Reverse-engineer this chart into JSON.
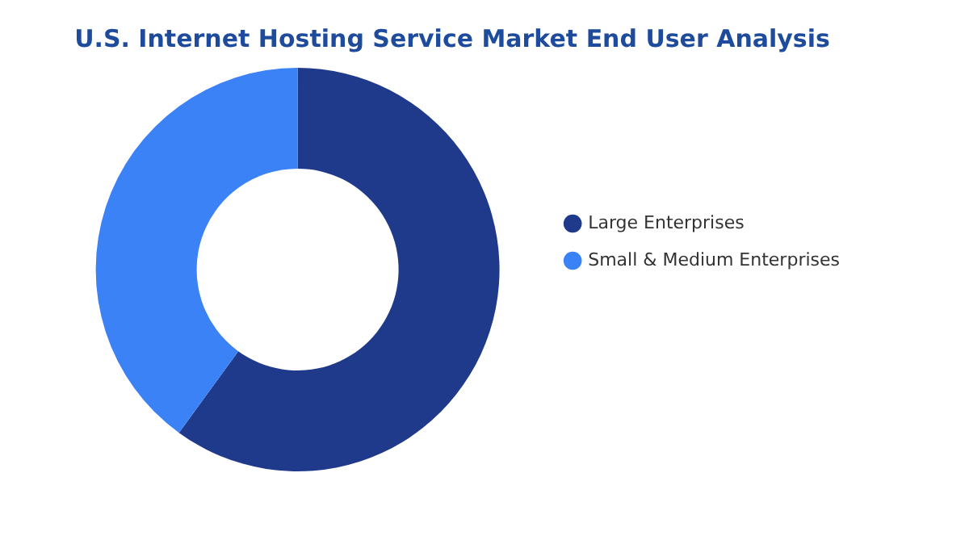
{
  "chart_data": {
    "type": "donut",
    "title": "U.S. Internet Hosting Service Market End User Analysis",
    "categories": [
      "Large Enterprises",
      "Small & Medium Enterprises"
    ],
    "values": [
      60,
      40
    ],
    "colors": [
      "#1f3a8a",
      "#3b82f6"
    ],
    "legend": "right"
  }
}
